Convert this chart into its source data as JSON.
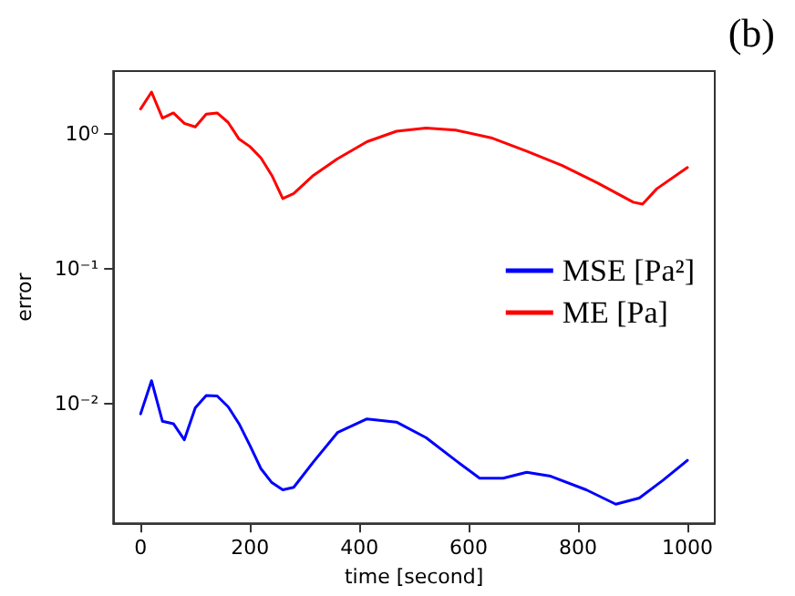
{
  "chart_data": {
    "type": "line",
    "xlabel": "time [second]",
    "ylabel": "error",
    "annotations": [
      "(b)"
    ],
    "log": "y",
    "grid": false,
    "legend": "right",
    "marker": "none",
    "line_style": "solid",
    "xlim": [
      -50,
      1050
    ],
    "xticks": [
      0,
      200,
      400,
      600,
      800,
      1000
    ],
    "ylim": [
      0.0013,
      2.9
    ],
    "yticks": [
      {
        "value": 0.01,
        "label": "10⁻²"
      },
      {
        "value": 0.1,
        "label": "10⁻¹"
      },
      {
        "value": 1,
        "label": "10⁰"
      }
    ],
    "series": [
      {
        "name": "MSE [Pa²]",
        "color": "#0000ff",
        "x": [
          0,
          20,
          40,
          60,
          80,
          100,
          120,
          140,
          160,
          180,
          200,
          220,
          240,
          260,
          280,
          316,
          360,
          414,
          468,
          522,
          576,
          620,
          663,
          706,
          750,
          815,
          869,
          912,
          955,
          1000
        ],
        "values": [
          0.0084,
          0.0148,
          0.0074,
          0.0071,
          0.0054,
          0.0093,
          0.0115,
          0.0114,
          0.0095,
          0.0071,
          0.0049,
          0.0033,
          0.0026,
          0.0023,
          0.0024,
          0.0037,
          0.0061,
          0.0077,
          0.0073,
          0.0056,
          0.0038,
          0.0028,
          0.0028,
          0.0031,
          0.0029,
          0.0023,
          0.0018,
          0.002,
          0.0027,
          0.0038
        ]
      },
      {
        "name": "ME [Pa]",
        "color": "#ff0000",
        "x": [
          0,
          20,
          40,
          60,
          80,
          100,
          120,
          140,
          160,
          180,
          200,
          220,
          240,
          260,
          280,
          316,
          360,
          414,
          468,
          522,
          576,
          641,
          706,
          771,
          836,
          901,
          918,
          944,
          1000
        ],
        "values": [
          1.52,
          2.03,
          1.3,
          1.42,
          1.19,
          1.12,
          1.39,
          1.42,
          1.21,
          0.91,
          0.8,
          0.66,
          0.49,
          0.33,
          0.36,
          0.49,
          0.65,
          0.87,
          1.04,
          1.1,
          1.06,
          0.93,
          0.74,
          0.58,
          0.43,
          0.31,
          0.3,
          0.39,
          0.56
        ]
      }
    ]
  }
}
